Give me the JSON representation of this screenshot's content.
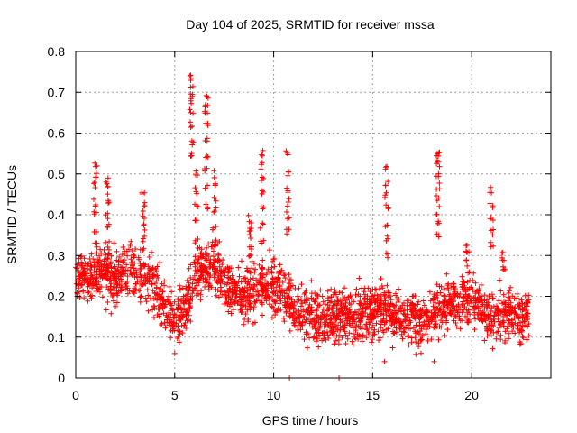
{
  "chart_data": {
    "type": "scatter",
    "title": "Day 104 of 2025, SRMTID for receiver mssa",
    "xlabel": "GPS time / hours",
    "ylabel": "SRMTID / TECUs",
    "xlim": [
      0,
      24
    ],
    "ylim": [
      0,
      0.8
    ],
    "xticks": [
      0,
      5,
      10,
      15,
      20
    ],
    "xtick_labels": [
      "0",
      "5",
      "10",
      "15",
      "20"
    ],
    "yticks": [
      0,
      0.1,
      0.2,
      0.3,
      0.4,
      0.5,
      0.6,
      0.7,
      0.8
    ],
    "ytick_labels": [
      "0",
      "0.1",
      "0.2",
      "0.3",
      "0.4",
      "0.5",
      "0.6",
      "0.7",
      "0.8"
    ],
    "grid": true,
    "marker": "plus",
    "color": "#ff0000",
    "x_data_end": 22.9,
    "background_profile": [
      [
        0,
        0.24
      ],
      [
        0.5,
        0.25
      ],
      [
        1,
        0.26
      ],
      [
        1.5,
        0.25
      ],
      [
        2,
        0.24
      ],
      [
        2.5,
        0.26
      ],
      [
        3,
        0.27
      ],
      [
        3.5,
        0.25
      ],
      [
        4,
        0.22
      ],
      [
        4.5,
        0.18
      ],
      [
        5,
        0.14
      ],
      [
        5.5,
        0.16
      ],
      [
        6,
        0.26
      ],
      [
        6.5,
        0.27
      ],
      [
        7,
        0.28
      ],
      [
        7.5,
        0.24
      ],
      [
        8,
        0.21
      ],
      [
        8.5,
        0.2
      ],
      [
        9,
        0.22
      ],
      [
        9.5,
        0.23
      ],
      [
        10,
        0.22
      ],
      [
        10.5,
        0.2
      ],
      [
        11,
        0.17
      ],
      [
        11.5,
        0.16
      ],
      [
        12,
        0.15
      ],
      [
        12.5,
        0.15
      ],
      [
        13,
        0.15
      ],
      [
        13.5,
        0.16
      ],
      [
        14,
        0.15
      ],
      [
        14.5,
        0.16
      ],
      [
        15,
        0.17
      ],
      [
        15.5,
        0.17
      ],
      [
        16,
        0.16
      ],
      [
        16.5,
        0.15
      ],
      [
        17,
        0.15
      ],
      [
        17.5,
        0.14
      ],
      [
        18,
        0.15
      ],
      [
        18.5,
        0.17
      ],
      [
        19,
        0.18
      ],
      [
        19.5,
        0.19
      ],
      [
        20,
        0.2
      ],
      [
        20.5,
        0.18
      ],
      [
        21,
        0.14
      ],
      [
        21.5,
        0.16
      ],
      [
        22,
        0.16
      ],
      [
        22.5,
        0.15
      ],
      [
        22.9,
        0.16
      ]
    ],
    "spike_series": [
      {
        "x": 1.0,
        "y": [
          0.52,
          0.5,
          0.47,
          0.43,
          0.4,
          0.36,
          0.33
        ]
      },
      {
        "x": 1.6,
        "y": [
          0.48,
          0.46,
          0.43,
          0.4,
          0.37,
          0.33,
          0.3
        ]
      },
      {
        "x": 3.4,
        "y": [
          0.46,
          0.43,
          0.4,
          0.37,
          0.34,
          0.31
        ]
      },
      {
        "x": 5.85,
        "y": [
          0.74,
          0.72,
          0.7,
          0.68,
          0.65,
          0.62,
          0.58,
          0.55
        ]
      },
      {
        "x": 6.1,
        "y": [
          0.5,
          0.46,
          0.42,
          0.38,
          0.34
        ]
      },
      {
        "x": 6.6,
        "y": [
          0.69,
          0.67,
          0.65,
          0.62,
          0.59,
          0.55,
          0.51,
          0.47,
          0.42
        ]
      },
      {
        "x": 7.0,
        "y": [
          0.5,
          0.47,
          0.44,
          0.41,
          0.37,
          0.33
        ]
      },
      {
        "x": 8.8,
        "y": [
          0.39,
          0.37,
          0.35,
          0.32,
          0.3
        ]
      },
      {
        "x": 9.4,
        "y": [
          0.55,
          0.52,
          0.49,
          0.45,
          0.41,
          0.37,
          0.33
        ]
      },
      {
        "x": 10.7,
        "y": [
          0.55,
          0.5,
          0.46,
          0.43,
          0.4,
          0.36
        ]
      },
      {
        "x": 15.7,
        "y": [
          0.52,
          0.48,
          0.45,
          0.42,
          0.38,
          0.34,
          0.3
        ]
      },
      {
        "x": 18.3,
        "y": [
          0.56,
          0.54,
          0.52,
          0.5,
          0.47,
          0.44,
          0.41,
          0.38,
          0.35
        ]
      },
      {
        "x": 19.8,
        "y": [
          0.32,
          0.3,
          0.28
        ]
      },
      {
        "x": 21.0,
        "y": [
          0.46,
          0.42,
          0.39,
          0.36,
          0.33
        ]
      },
      {
        "x": 21.6,
        "y": [
          0.3,
          0.28,
          0.26
        ]
      }
    ],
    "outliers": [
      {
        "x": 10.8,
        "y": 0.0
      },
      {
        "x": 13.3,
        "y": 0.0
      },
      {
        "x": 15.6,
        "y": 0.04
      },
      {
        "x": 18.1,
        "y": 0.04
      },
      {
        "x": 5.0,
        "y": 0.06
      }
    ]
  }
}
